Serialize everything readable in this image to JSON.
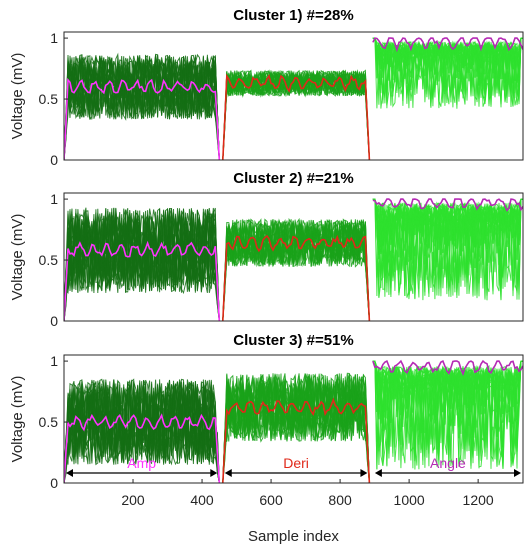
{
  "chart_data": [
    {
      "type": "line",
      "title": "Cluster 1) #=28%",
      "ylabel": "Voltage (mV)",
      "xlabel": "",
      "xlim": [
        0,
        1330
      ],
      "ylim": [
        0,
        1.05
      ],
      "yticks": [
        0,
        0.5,
        1
      ],
      "ytick_labels": [
        "0",
        "0.5",
        "1"
      ],
      "xticks": [],
      "xtick_labels": [],
      "segments": [
        {
          "id": "amp",
          "x": [
            0,
            450
          ],
          "mean": 0.6,
          "spread": 0.38,
          "mean_color": "#ff33ff",
          "fill_color": "#146f14",
          "bundle": "lowfill"
        },
        {
          "id": "deri",
          "x": [
            460,
            885
          ],
          "mean": 0.63,
          "spread": 0.15,
          "mean_color": "#e0291a",
          "fill_color": "#1aa21a",
          "bundle": "mid"
        },
        {
          "id": "angle",
          "x": [
            895,
            1330
          ],
          "mean": 0.97,
          "spread": 0.55,
          "mean_color": "#b52bb5",
          "fill_color": "#2ee02e",
          "bundle": "top"
        }
      ]
    },
    {
      "type": "line",
      "title": "Cluster 2) #=21%",
      "ylabel": "Voltage (mV)",
      "xlabel": "",
      "xlim": [
        0,
        1330
      ],
      "ylim": [
        0,
        1.05
      ],
      "yticks": [
        0,
        0.5,
        1
      ],
      "ytick_labels": [
        "0",
        "0.5",
        "1"
      ],
      "xticks": [],
      "xtick_labels": [],
      "segments": [
        {
          "id": "amp",
          "x": [
            0,
            450
          ],
          "mean": 0.58,
          "spread": 0.5,
          "mean_color": "#ff33ff",
          "fill_color": "#146f14",
          "bundle": "lowfill"
        },
        {
          "id": "deri",
          "x": [
            460,
            885
          ],
          "mean": 0.64,
          "spread": 0.28,
          "mean_color": "#e0291a",
          "fill_color": "#1aa21a",
          "bundle": "mid"
        },
        {
          "id": "angle",
          "x": [
            895,
            1330
          ],
          "mean": 0.97,
          "spread": 0.8,
          "mean_color": "#b52bb5",
          "fill_color": "#2ee02e",
          "bundle": "top"
        }
      ]
    },
    {
      "type": "line",
      "title": "Cluster 3) #=51%",
      "ylabel": "Voltage (mV)",
      "xlabel": "Sample index",
      "xlim": [
        0,
        1330
      ],
      "ylim": [
        0,
        1.05
      ],
      "yticks": [
        0,
        0.5,
        1
      ],
      "ytick_labels": [
        "0",
        "0.5",
        "1"
      ],
      "xticks": [
        200,
        400,
        600,
        800,
        1000,
        1200
      ],
      "xtick_labels": [
        "200",
        "400",
        "600",
        "800",
        "1000",
        "1200"
      ],
      "segments": [
        {
          "id": "amp",
          "x": [
            0,
            450
          ],
          "mean": 0.5,
          "spread": 0.5,
          "mean_color": "#ff33ff",
          "fill_color": "#146f14",
          "bundle": "lowfill"
        },
        {
          "id": "deri",
          "x": [
            460,
            885
          ],
          "mean": 0.62,
          "spread": 0.4,
          "mean_color": "#e0291a",
          "fill_color": "#1aa21a",
          "bundle": "mid"
        },
        {
          "id": "angle",
          "x": [
            895,
            1330
          ],
          "mean": 0.96,
          "spread": 0.85,
          "mean_color": "#b52bb5",
          "fill_color": "#2ee02e",
          "bundle": "top"
        }
      ],
      "annotations": [
        {
          "text": "Amp",
          "x_range": [
            0,
            450
          ],
          "color": "#ff33ff"
        },
        {
          "text": "Deri",
          "x_range": [
            460,
            885
          ],
          "color": "#e0291a"
        },
        {
          "text": "Angle",
          "x_range": [
            895,
            1330
          ],
          "color": "#b52bb5"
        }
      ]
    }
  ]
}
